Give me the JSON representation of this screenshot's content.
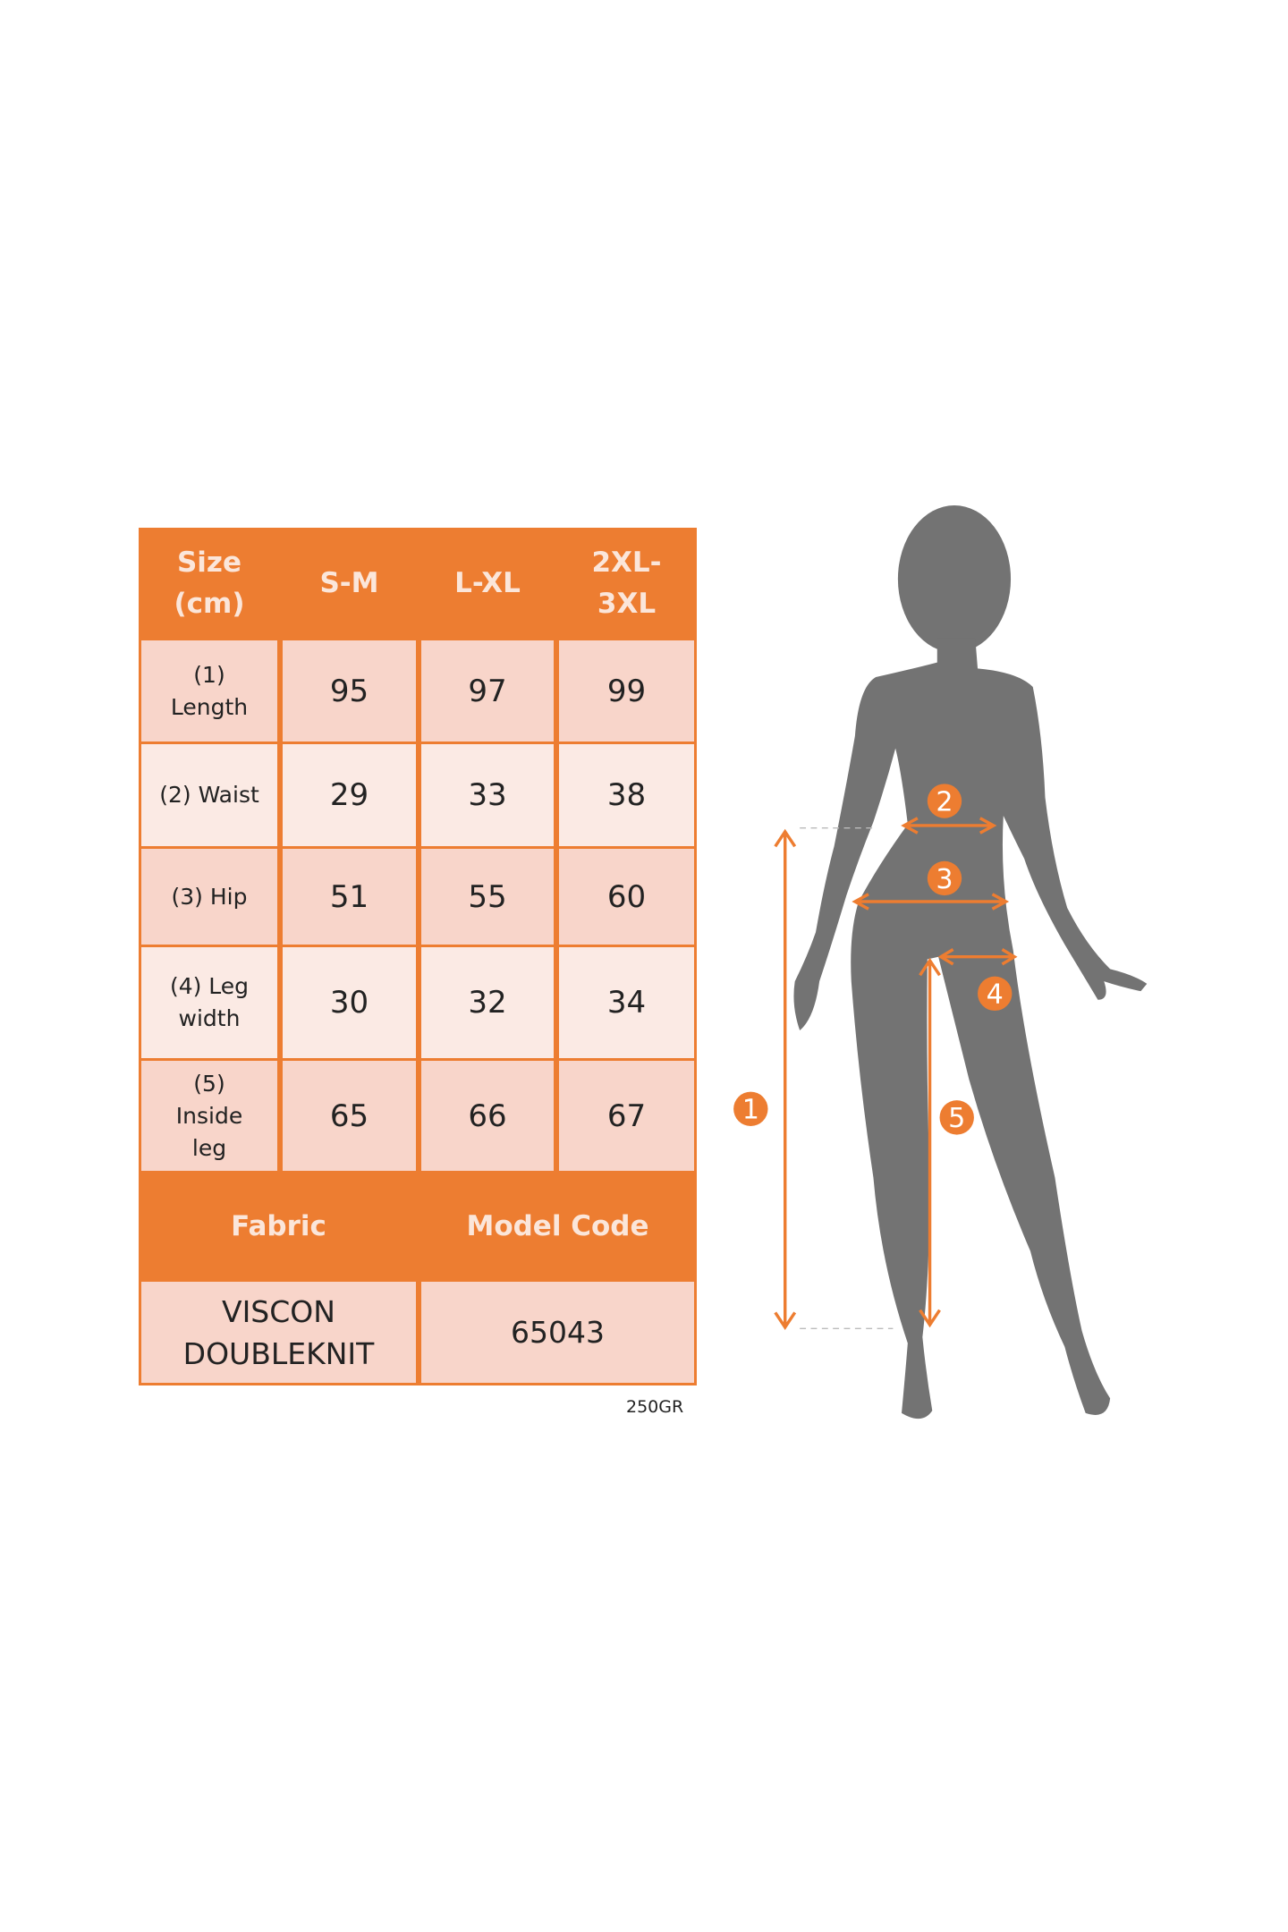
{
  "table": {
    "header": [
      "Size\n(cm)",
      "S-M",
      "L-XL",
      "2XL-\n3XL"
    ],
    "rows": [
      {
        "label": "(1)\nLength",
        "values": [
          "95",
          "97",
          "99"
        ]
      },
      {
        "label": "(2) Waist",
        "values": [
          "29",
          "33",
          "38"
        ]
      },
      {
        "label": "(3) Hip",
        "values": [
          "51",
          "55",
          "60"
        ]
      },
      {
        "label": "(4) Leg\nwidth",
        "values": [
          "30",
          "32",
          "34"
        ]
      },
      {
        "label": "(5)\nInside\nleg",
        "values": [
          "65",
          "66",
          "67"
        ]
      }
    ],
    "fabric_label": "Fabric",
    "model_code_label": "Model Code",
    "fabric_value": "VISCON\nDOUBLEKNIT",
    "model_code_value": "65043"
  },
  "weight": "250GR",
  "figure": {
    "markers": [
      "1",
      "2",
      "3",
      "4",
      "5"
    ],
    "silhouette_color": "#737373",
    "accent_color": "#ED7D31"
  }
}
